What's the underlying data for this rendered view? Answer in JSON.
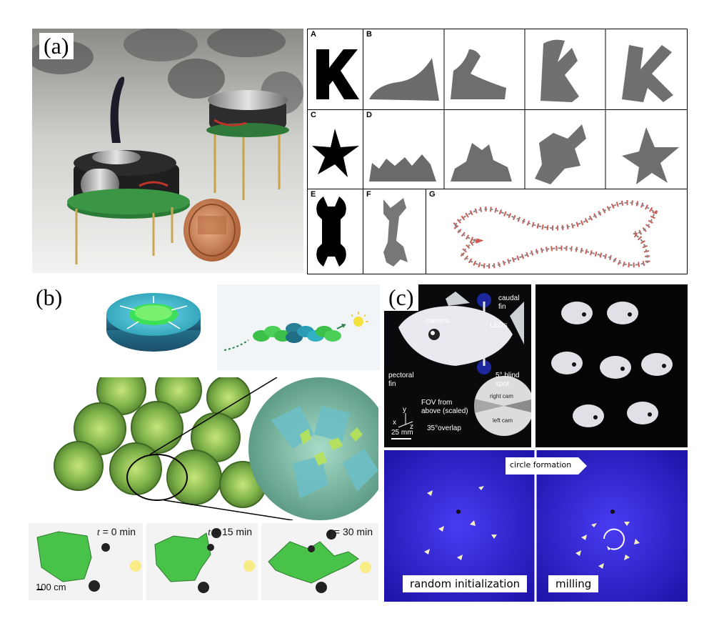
{
  "panel_a": {
    "label": "(a)",
    "grid": [
      {
        "letter": "A"
      },
      {
        "letter": "B"
      },
      {
        "letter": "C"
      },
      {
        "letter": "D"
      },
      {
        "letter": "E"
      },
      {
        "letter": "F"
      },
      {
        "letter": "G"
      }
    ]
  },
  "panel_b": {
    "label": "(b)",
    "snapshots": [
      {
        "t_prefix": "t",
        "time": " = 0 min"
      },
      {
        "t_prefix": "t",
        "time": " = 15 min"
      },
      {
        "t_prefix": "t",
        "time": " = 30 min"
      }
    ],
    "scale_bar": "100 cm"
  },
  "panel_c": {
    "label": "(c)",
    "annotations": {
      "fin": "fin",
      "caudal_fin": "caudal\nfin",
      "camera": "camera",
      "leds": "LEDs",
      "blind_spot": "5° blind\nspot",
      "pectoral_fin": "pectoral\nfin",
      "fov": "FOV from\nabove (scaled)",
      "right_cam": "right cam",
      "left_cam": "left cam",
      "overlap": "35°overlap",
      "scale": "25 mm",
      "axis_y": "y",
      "axis_x": "x",
      "axis_z": "z"
    },
    "arrow_label": "circle formation",
    "captions": {
      "left": "random initialization",
      "right": "milling"
    }
  }
}
